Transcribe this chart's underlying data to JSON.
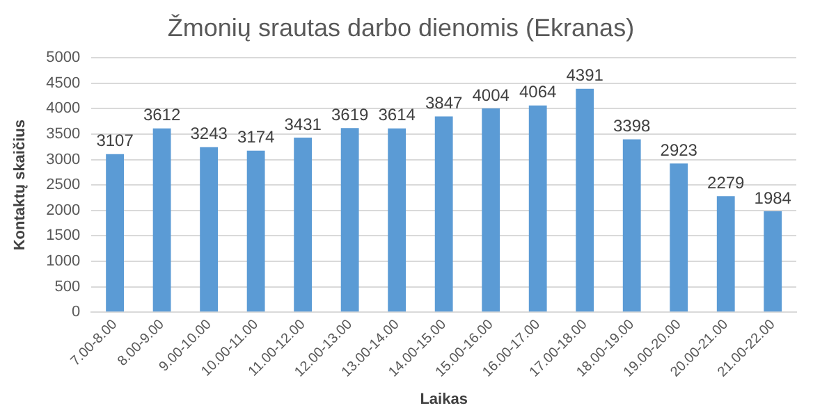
{
  "chart_data": {
    "type": "bar",
    "title": "Žmonių srautas darbo dienomis (Ekranas)",
    "xlabel": "Laikas",
    "ylabel": "Kontaktų skaičius",
    "categories": [
      "7.00-8.00",
      "8.00-9.00",
      "9.00-10.00",
      "10.00-11.00",
      "11.00-12.00",
      "12.00-13.00",
      "13.00-14.00",
      "14.00-15.00",
      "15.00-16.00",
      "16.00-17.00",
      "17.00-18.00",
      "18.00-19.00",
      "19.00-20.00",
      "20.00-21.00",
      "21.00-22.00"
    ],
    "values": [
      3107,
      3612,
      3243,
      3174,
      3431,
      3619,
      3614,
      3847,
      4004,
      4064,
      4391,
      3398,
      2923,
      2279,
      1984
    ],
    "color": "#5b9bd5",
    "ylim": [
      0,
      5000
    ],
    "yticks": [
      0,
      500,
      1000,
      1500,
      2000,
      2500,
      3000,
      3500,
      4000,
      4500,
      5000
    ],
    "grid": "y",
    "data_labels": true,
    "legend": false
  }
}
